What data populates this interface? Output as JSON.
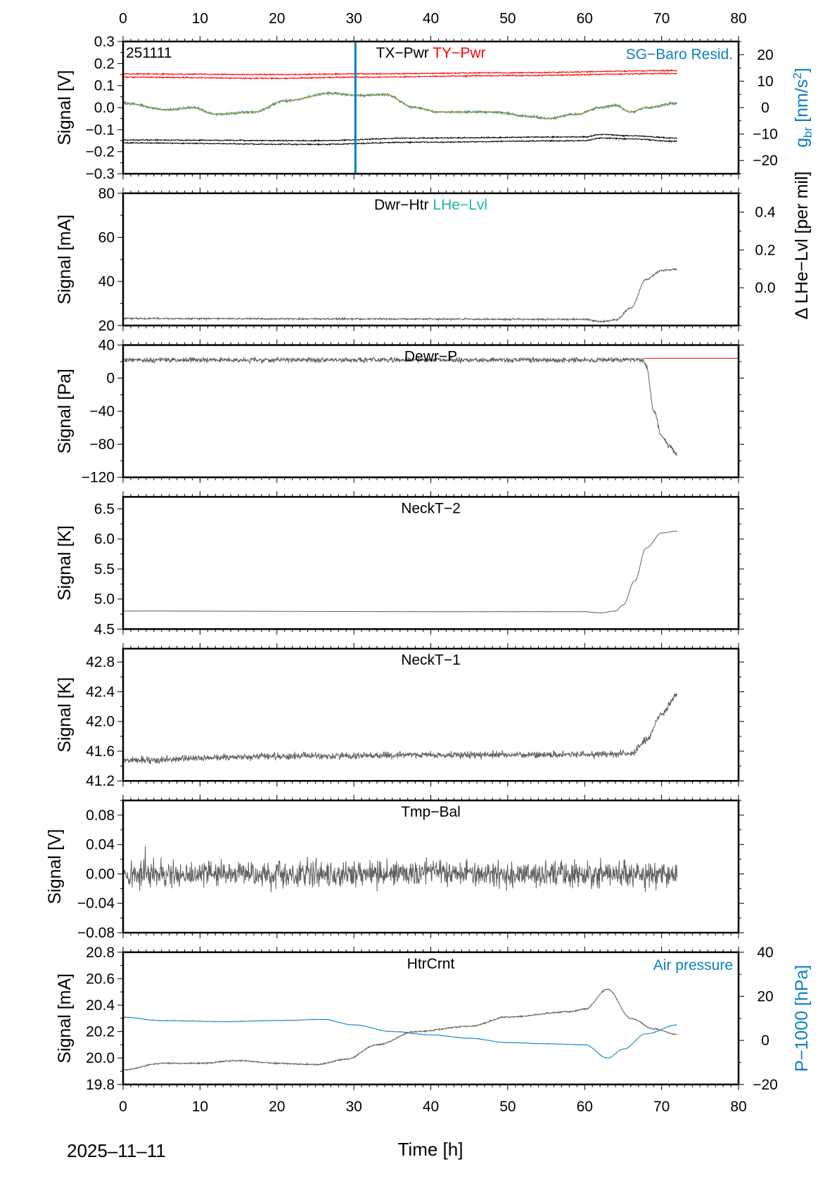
{
  "chart_data": {
    "type": "line",
    "date": "2025–11–11",
    "xlabel": "Time [h]",
    "xlim": [
      0,
      80
    ],
    "xticks": [
      0,
      10,
      20,
      30,
      40,
      50,
      60,
      70,
      80
    ],
    "colors": {
      "black": "#000000",
      "red": "#ff0000",
      "blue": "#0a7fc0",
      "teal": "#1cb5a8",
      "gray": "#606060",
      "olive": "#a0a020"
    },
    "panels": [
      {
        "id": "tx-ty-pwr",
        "ylabel": "Signal [V]",
        "ylim": [
          -0.3,
          0.3
        ],
        "yticks": [
          "−0.3",
          "−0.2",
          "−0.1",
          "0.0",
          "0.1",
          "0.2",
          "0.3"
        ],
        "ytick_values": [
          -0.3,
          -0.2,
          -0.1,
          0,
          0.1,
          0.2,
          0.3
        ],
        "corner_label": "251111",
        "titles": [
          {
            "text": "TX−Pwr",
            "color": "#000000"
          },
          {
            "text": "TY−Pwr",
            "color": "#ff0000"
          }
        ],
        "right_title": {
          "text": "SG−Baro Resid.",
          "color": "#0a7fc0"
        },
        "right_axis": {
          "label": "g_br [nm/s²]",
          "label_main": "g",
          "label_sub": "br",
          "label_rest": " [nm/s",
          "label_sup": "2",
          "label_end": "]",
          "color": "#0a7fc0",
          "ylim": [
            -25,
            25
          ],
          "ticks": [
            "−20",
            "−10",
            "0",
            "10",
            "20"
          ],
          "tick_values": [
            -20,
            -10,
            0,
            10,
            20
          ]
        },
        "vline": {
          "x": 30.2,
          "color": "#0a7fc0"
        },
        "series": [
          {
            "name": "TY-Pwr upper",
            "color": "#ff0000",
            "noise": 0.004,
            "points": [
              [
                0,
                0.153
              ],
              [
                20,
                0.15
              ],
              [
                30,
                0.153
              ],
              [
                50,
                0.158
              ],
              [
                72,
                0.168
              ]
            ]
          },
          {
            "name": "TY-Pwr lower",
            "color": "#ff0000",
            "noise": 0.004,
            "points": [
              [
                0,
                0.138
              ],
              [
                20,
                0.133
              ],
              [
                30,
                0.138
              ],
              [
                50,
                0.145
              ],
              [
                72,
                0.155
              ]
            ]
          },
          {
            "name": "TX-Pwr upper",
            "color": "#000000",
            "noise": 0.004,
            "points": [
              [
                0,
                -0.147
              ],
              [
                25,
                -0.15
              ],
              [
                38,
                -0.138
              ],
              [
                60,
                -0.133
              ],
              [
                62,
                -0.122
              ],
              [
                66,
                -0.128
              ],
              [
                72,
                -0.138
              ]
            ]
          },
          {
            "name": "TX-Pwr lower",
            "color": "#000000",
            "noise": 0.004,
            "points": [
              [
                0,
                -0.16
              ],
              [
                25,
                -0.167
              ],
              [
                38,
                -0.157
              ],
              [
                60,
                -0.15
              ],
              [
                62,
                -0.138
              ],
              [
                66,
                -0.142
              ],
              [
                72,
                -0.153
              ]
            ]
          },
          {
            "name": "SG-Baro Resid.",
            "color": "#0a7fc0",
            "noise": 0.007,
            "width": 1.2,
            "points": [
              [
                0,
                0.02
              ],
              [
                6,
                -0.01
              ],
              [
                9,
                0.0
              ],
              [
                12,
                -0.03
              ],
              [
                17,
                -0.02
              ],
              [
                21,
                0.03
              ],
              [
                27,
                0.065
              ],
              [
                31,
                0.055
              ],
              [
                34,
                0.06
              ],
              [
                38,
                0.0
              ],
              [
                41,
                -0.02
              ],
              [
                48,
                -0.02
              ],
              [
                53,
                -0.04
              ],
              [
                55,
                -0.05
              ],
              [
                59,
                -0.03
              ],
              [
                62,
                0.0
              ],
              [
                64,
                0.01
              ],
              [
                66,
                -0.02
              ],
              [
                68,
                0.0
              ],
              [
                72,
                0.02
              ]
            ]
          },
          {
            "name": "SG-Baro Resid. smoothed",
            "color": "#a0a020",
            "noise": 0.001,
            "width": 1.5,
            "points": [
              [
                0,
                0.02
              ],
              [
                6,
                -0.01
              ],
              [
                9,
                0.0
              ],
              [
                12,
                -0.03
              ],
              [
                17,
                -0.02
              ],
              [
                21,
                0.03
              ],
              [
                27,
                0.065
              ],
              [
                31,
                0.055
              ],
              [
                34,
                0.06
              ],
              [
                38,
                0.0
              ],
              [
                41,
                -0.02
              ],
              [
                48,
                -0.02
              ],
              [
                53,
                -0.04
              ],
              [
                55,
                -0.05
              ],
              [
                59,
                -0.03
              ],
              [
                62,
                0.0
              ],
              [
                64,
                0.01
              ],
              [
                66,
                -0.02
              ],
              [
                68,
                0.0
              ],
              [
                72,
                0.02
              ]
            ]
          }
        ]
      },
      {
        "id": "dwr-htr",
        "ylabel": "Signal [mA]",
        "ylim": [
          20,
          80
        ],
        "yticks": [
          "20",
          "40",
          "60",
          "80"
        ],
        "ytick_values": [
          20,
          40,
          60,
          80
        ],
        "titles": [
          {
            "text": "Dwr−Htr",
            "color": "#000000"
          },
          {
            "text": "LHe−Lvl",
            "color": "#1cb5a8"
          }
        ],
        "right_axis": {
          "label": "Δ LHe−Lvl [per mil]",
          "color": "#000000",
          "ylim": [
            -0.2,
            0.5
          ],
          "ticks": [
            "0.0",
            "0.2",
            "0.4"
          ],
          "tick_values": [
            0,
            0.2,
            0.4
          ]
        },
        "series": [
          {
            "name": "Dwr-Htr",
            "color": "#606060",
            "noise": 0.6,
            "points": [
              [
                0,
                23.2
              ],
              [
                30,
                23.0
              ],
              [
                60,
                22.8
              ],
              [
                62,
                21.8
              ],
              [
                64,
                22.5
              ],
              [
                66,
                28
              ],
              [
                68,
                41
              ],
              [
                70,
                45
              ],
              [
                72,
                45.5
              ]
            ]
          }
        ]
      },
      {
        "id": "dewr-p",
        "ylabel": "Signal [Pa]",
        "ylim": [
          -120,
          40
        ],
        "yticks": [
          "−120",
          "−80",
          "−40",
          "0",
          "40"
        ],
        "ytick_values": [
          -120,
          -80,
          -40,
          0,
          40
        ],
        "titles": [
          {
            "text": "Dewr−P",
            "color": "#000000"
          }
        ],
        "hline": {
          "y": 24,
          "from": 67.7,
          "to": 80,
          "color": "#ff0000"
        },
        "series": [
          {
            "name": "Dewr-P",
            "color": "#606060",
            "noise": 4.5,
            "points": [
              [
                0,
                22
              ],
              [
                67.5,
                22
              ],
              [
                68,
                15
              ],
              [
                69,
                -40
              ],
              [
                70,
                -70
              ],
              [
                71,
                -82
              ],
              [
                72,
                -92
              ]
            ]
          }
        ]
      },
      {
        "id": "neckt-2",
        "ylabel": "Signal [K]",
        "ylim": [
          4.5,
          6.7
        ],
        "yticks": [
          "4.5",
          "5.0",
          "5.5",
          "6.0",
          "6.5"
        ],
        "ytick_values": [
          4.5,
          5.0,
          5.5,
          6.0,
          6.5
        ],
        "titles": [
          {
            "text": "NeckT−2",
            "color": "#000000"
          }
        ],
        "series": [
          {
            "name": "NeckT-2",
            "color": "#606060",
            "noise": 0.003,
            "points": [
              [
                0,
                4.8
              ],
              [
                40,
                4.79
              ],
              [
                60,
                4.79
              ],
              [
                62,
                4.77
              ],
              [
                64,
                4.8
              ],
              [
                65,
                4.9
              ],
              [
                66.5,
                5.3
              ],
              [
                68,
                5.85
              ],
              [
                70,
                6.1
              ],
              [
                72,
                6.13
              ]
            ]
          }
        ]
      },
      {
        "id": "neckt-1",
        "ylabel": "Signal [K]",
        "ylim": [
          41.2,
          42.98
        ],
        "yticks": [
          "41.2",
          "41.6",
          "42.0",
          "42.4",
          "42.8"
        ],
        "ytick_values": [
          41.2,
          41.6,
          42.0,
          42.4,
          42.8
        ],
        "titles": [
          {
            "text": "NeckT−1",
            "color": "#000000"
          }
        ],
        "series": [
          {
            "name": "NeckT-1",
            "color": "#606060",
            "noise": 0.07,
            "points": [
              [
                0,
                41.48
              ],
              [
                20,
                41.53
              ],
              [
                40,
                41.55
              ],
              [
                60,
                41.55
              ],
              [
                66,
                41.56
              ],
              [
                68,
                41.75
              ],
              [
                70,
                42.1
              ],
              [
                72,
                42.35
              ]
            ]
          }
        ]
      },
      {
        "id": "tmp-bal",
        "ylabel": "Signal [V]",
        "ylim": [
          -0.08,
          0.1
        ],
        "yticks": [
          "−0.08",
          "−0.04",
          "0.00",
          "0.04",
          "0.08"
        ],
        "ytick_values": [
          -0.08,
          -0.04,
          0,
          0.04,
          0.08
        ],
        "titles": [
          {
            "text": "Tmp−Bal",
            "color": "#000000"
          }
        ],
        "series": [
          {
            "name": "Tmp-Bal",
            "color": "#606060",
            "noise": 0.026,
            "spiky": true,
            "points": [
              [
                0,
                0
              ],
              [
                72,
                0
              ]
            ]
          }
        ]
      },
      {
        "id": "htrcrnt",
        "ylabel": "Signal [mA]",
        "ylim": [
          19.8,
          20.8
        ],
        "yticks": [
          "19.8",
          "20.0",
          "20.2",
          "20.4",
          "20.6",
          "20.8"
        ],
        "ytick_values": [
          19.8,
          20.0,
          20.2,
          20.4,
          20.6,
          20.8
        ],
        "titles": [
          {
            "text": "HtrCrnt",
            "color": "#000000"
          }
        ],
        "right_title": {
          "text": "Air pressure",
          "color": "#0a7fc0"
        },
        "right_axis": {
          "label": "P−1000 [hPa]",
          "color": "#0a7fc0",
          "ylim": [
            -20,
            40
          ],
          "ticks": [
            "−20",
            "0",
            "20",
            "40"
          ],
          "tick_values": [
            -20,
            0,
            20,
            40
          ]
        },
        "series": [
          {
            "name": "HtrCrnt",
            "color": "#606060",
            "noise": 0.008,
            "points": [
              [
                0,
                19.91
              ],
              [
                5,
                19.96
              ],
              [
                10,
                19.96
              ],
              [
                15,
                19.98
              ],
              [
                20,
                19.96
              ],
              [
                25,
                19.95
              ],
              [
                29,
                19.99
              ],
              [
                33,
                20.1
              ],
              [
                38,
                20.2
              ],
              [
                45,
                20.24
              ],
              [
                50,
                20.31
              ],
              [
                58,
                20.35
              ],
              [
                60,
                20.37
              ],
              [
                63,
                20.52
              ],
              [
                66,
                20.3
              ],
              [
                69,
                20.22
              ],
              [
                72,
                20.18
              ]
            ]
          },
          {
            "name": "Air pressure",
            "color": "#0a7fc0",
            "axis": "right",
            "noise": 0.2,
            "points": [
              [
                0,
                10.5
              ],
              [
                5,
                9
              ],
              [
                13,
                8.5
              ],
              [
                20,
                9
              ],
              [
                26,
                9.5
              ],
              [
                30,
                7
              ],
              [
                35,
                4
              ],
              [
                40,
                2.5
              ],
              [
                45,
                1
              ],
              [
                50,
                -1
              ],
              [
                55,
                -1.5
              ],
              [
                60,
                -2
              ],
              [
                63,
                -8
              ],
              [
                65,
                -4
              ],
              [
                68,
                3
              ],
              [
                72,
                7
              ]
            ]
          }
        ]
      }
    ]
  }
}
